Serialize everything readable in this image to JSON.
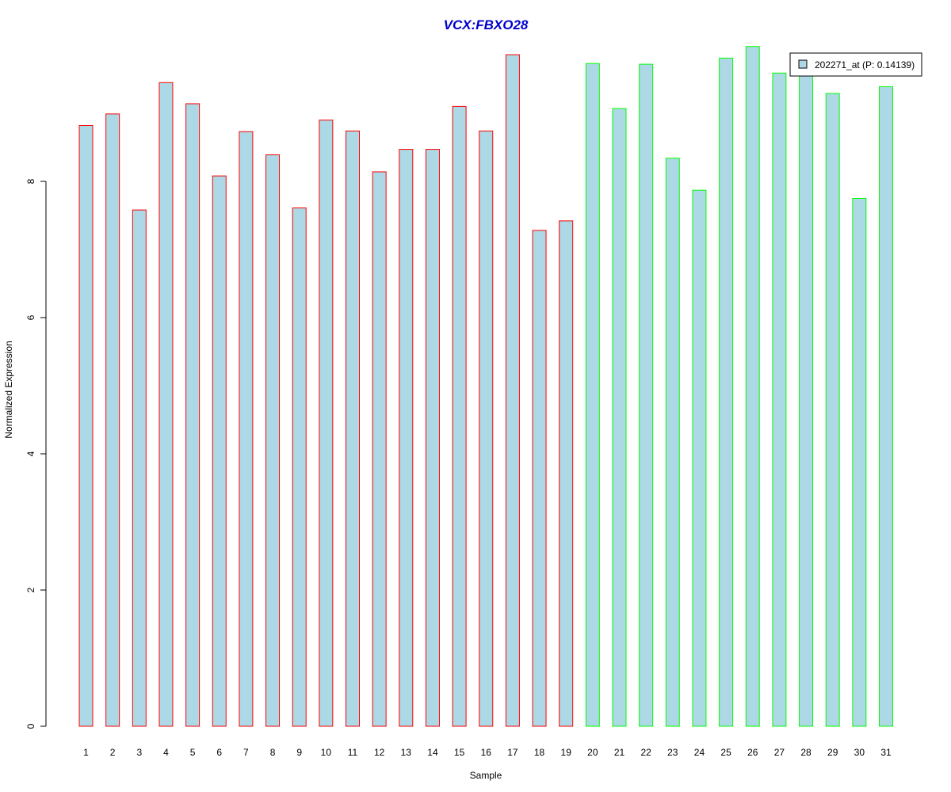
{
  "chart_data": {
    "type": "bar",
    "title": "VCX:FBXO28",
    "xlabel": "Sample",
    "ylabel": "Normalized Expression",
    "ylim": [
      0,
      10
    ],
    "yticks": [
      "0",
      "2",
      "4",
      "6",
      "8"
    ],
    "categories": [
      "1",
      "2",
      "3",
      "4",
      "5",
      "6",
      "7",
      "8",
      "9",
      "10",
      "11",
      "12",
      "13",
      "14",
      "15",
      "16",
      "17",
      "18",
      "19",
      "20",
      "21",
      "22",
      "23",
      "24",
      "25",
      "26",
      "27",
      "28",
      "29",
      "30",
      "31"
    ],
    "values": [
      8.82,
      8.99,
      7.58,
      9.45,
      9.14,
      8.08,
      8.73,
      8.39,
      7.61,
      8.9,
      8.74,
      8.14,
      8.47,
      8.47,
      9.1,
      8.74,
      9.86,
      7.28,
      7.42,
      9.73,
      9.07,
      9.72,
      8.34,
      7.87,
      9.81,
      9.98,
      9.59,
      9.58,
      9.29,
      7.75,
      9.39
    ],
    "groups": [
      "red",
      "red",
      "red",
      "red",
      "red",
      "red",
      "red",
      "red",
      "red",
      "red",
      "red",
      "red",
      "red",
      "red",
      "red",
      "red",
      "red",
      "red",
      "red",
      "green",
      "green",
      "green",
      "green",
      "green",
      "green",
      "green",
      "green",
      "green",
      "green",
      "green",
      "green"
    ],
    "series": [
      {
        "name": "202271_at (P: 0.14139)",
        "values_ref": "values"
      }
    ],
    "legend_position": "top-right",
    "grid": false,
    "colors": {
      "bar_fill": "#ADD8E6",
      "border_red": "#FF0000",
      "border_green": "#00FF00",
      "title": "#0000CD"
    }
  }
}
